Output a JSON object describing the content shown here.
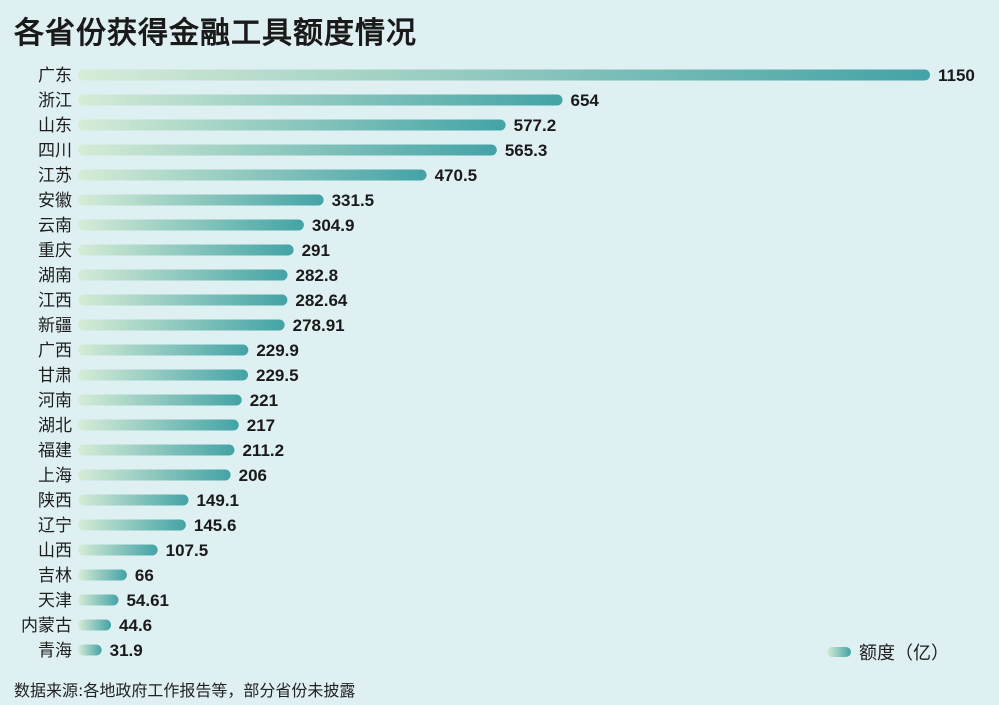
{
  "title": "各省份获得金融工具额度情况",
  "legend": {
    "label": "额度（亿）"
  },
  "source": "数据来源:各地政府工作报告等，部分省份未披露",
  "colors": {
    "bar_start": "#d6ecd6",
    "bar_end": "#43a3a6",
    "background": "#dff0f3"
  },
  "chart_data": {
    "type": "bar",
    "orientation": "horizontal",
    "title": "各省份获得金融工具额度情况",
    "xlabel": "",
    "ylabel": "",
    "legend": [
      "额度（亿）"
    ],
    "legend_position": "bottom-right",
    "grid": false,
    "xlim": [
      0,
      1150
    ],
    "categories": [
      "广东",
      "浙江",
      "山东",
      "四川",
      "江苏",
      "安徽",
      "云南",
      "重庆",
      "湖南",
      "江西",
      "新疆",
      "广西",
      "甘肃",
      "河南",
      "湖北",
      "福建",
      "上海",
      "陕西",
      "辽宁",
      "山西",
      "吉林",
      "天津",
      "内蒙古",
      "青海"
    ],
    "values": [
      1150,
      654,
      577.2,
      565.3,
      470.5,
      331.5,
      304.9,
      291,
      282.8,
      282.64,
      278.91,
      229.9,
      229.5,
      221,
      217,
      211.2,
      206,
      149.1,
      145.6,
      107.5,
      66,
      54.61,
      44.6,
      31.9
    ],
    "value_labels": [
      "1150",
      "654",
      "577.2",
      "565.3",
      "470.5",
      "331.5",
      "304.9",
      "291",
      "282.8",
      "282.64",
      "278.91",
      "229.9",
      "229.5",
      "221",
      "217",
      "211.2",
      "206",
      "149.1",
      "145.6",
      "107.5",
      "66",
      "54.61",
      "44.6",
      "31.9"
    ]
  }
}
